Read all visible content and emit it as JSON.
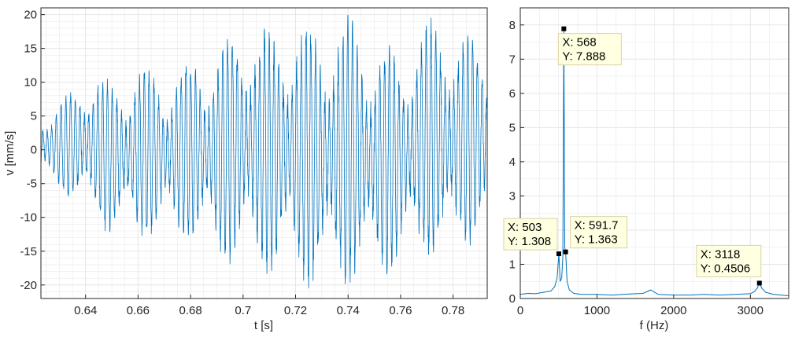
{
  "colors": {
    "series": "#0072BD",
    "grid": "#e6e6e6",
    "axis": "#262626",
    "datatip_bg": "#ffffe1",
    "datatip_border": "#d9d3a0"
  },
  "chart_data": [
    {
      "type": "line",
      "xlabel": "t [s]",
      "ylabel": "v [mm/s]",
      "xlim": [
        0.623,
        0.793
      ],
      "ylim": [
        -22,
        21
      ],
      "grid": true,
      "xticks": [
        "0.64",
        "0.66",
        "0.68",
        "0.7",
        "0.72",
        "0.74",
        "0.76",
        "0.78"
      ],
      "yticks": [
        "-20",
        "-15",
        "-10",
        "-5",
        "0",
        "5",
        "10",
        "15",
        "20"
      ],
      "series": [
        {
          "envelope_t": [
            0.623,
            0.63,
            0.64,
            0.65,
            0.66,
            0.67,
            0.68,
            0.69,
            0.7,
            0.71,
            0.72,
            0.73,
            0.74,
            0.75,
            0.76,
            0.77,
            0.78,
            0.793
          ],
          "envelope_max": [
            6,
            7,
            12,
            11,
            13,
            12,
            14,
            16,
            20,
            19,
            20,
            19,
            21,
            17,
            15,
            20,
            19,
            16
          ],
          "envelope_min": [
            -5,
            -6,
            -10,
            -13,
            -14,
            -13,
            -14,
            -17,
            -18,
            -19,
            -21,
            -21,
            -21,
            -20,
            -18,
            -16,
            -17,
            -12
          ]
        }
      ]
    },
    {
      "type": "line",
      "xlabel": "f (Hz)",
      "ylabel": "",
      "xlim": [
        0,
        3500
      ],
      "ylim": [
        0,
        8.5
      ],
      "grid": true,
      "xticks": [
        "0",
        "1000",
        "2000",
        "3000"
      ],
      "yticks": [
        "0",
        "1",
        "2",
        "3",
        "4",
        "5",
        "6",
        "7",
        "8"
      ],
      "series": [
        {
          "x": [
            0,
            100,
            200,
            300,
            400,
            450,
            480,
            503,
            520,
            540,
            555,
            568,
            580,
            591.7,
            610,
            640,
            700,
            800,
            1000,
            1200,
            1400,
            1600,
            1700,
            1800,
            2000,
            2200,
            2400,
            2600,
            2800,
            3000,
            3050,
            3090,
            3118,
            3150,
            3200,
            3300,
            3400,
            3500
          ],
          "y": [
            0.12,
            0.15,
            0.14,
            0.18,
            0.22,
            0.35,
            0.6,
            1.308,
            0.5,
            0.6,
            1.2,
            7.888,
            1.5,
            1.363,
            0.5,
            0.25,
            0.15,
            0.12,
            0.12,
            0.1,
            0.13,
            0.15,
            0.25,
            0.12,
            0.1,
            0.1,
            0.12,
            0.1,
            0.12,
            0.14,
            0.2,
            0.3,
            0.4506,
            0.3,
            0.18,
            0.12,
            0.1,
            0.08
          ]
        }
      ],
      "datatips": [
        {
          "x": 568,
          "y": 7.888,
          "label_x": "X: 568",
          "label_y": "Y: 7.888"
        },
        {
          "x": 503,
          "y": 1.308,
          "label_x": "X: 503",
          "label_y": "Y: 1.308"
        },
        {
          "x": 591.7,
          "y": 1.363,
          "label_x": "X: 591.7",
          "label_y": "Y: 1.363"
        },
        {
          "x": 3118,
          "y": 0.4506,
          "label_x": "X: 3118",
          "label_y": "Y: 0.4506"
        }
      ]
    }
  ]
}
